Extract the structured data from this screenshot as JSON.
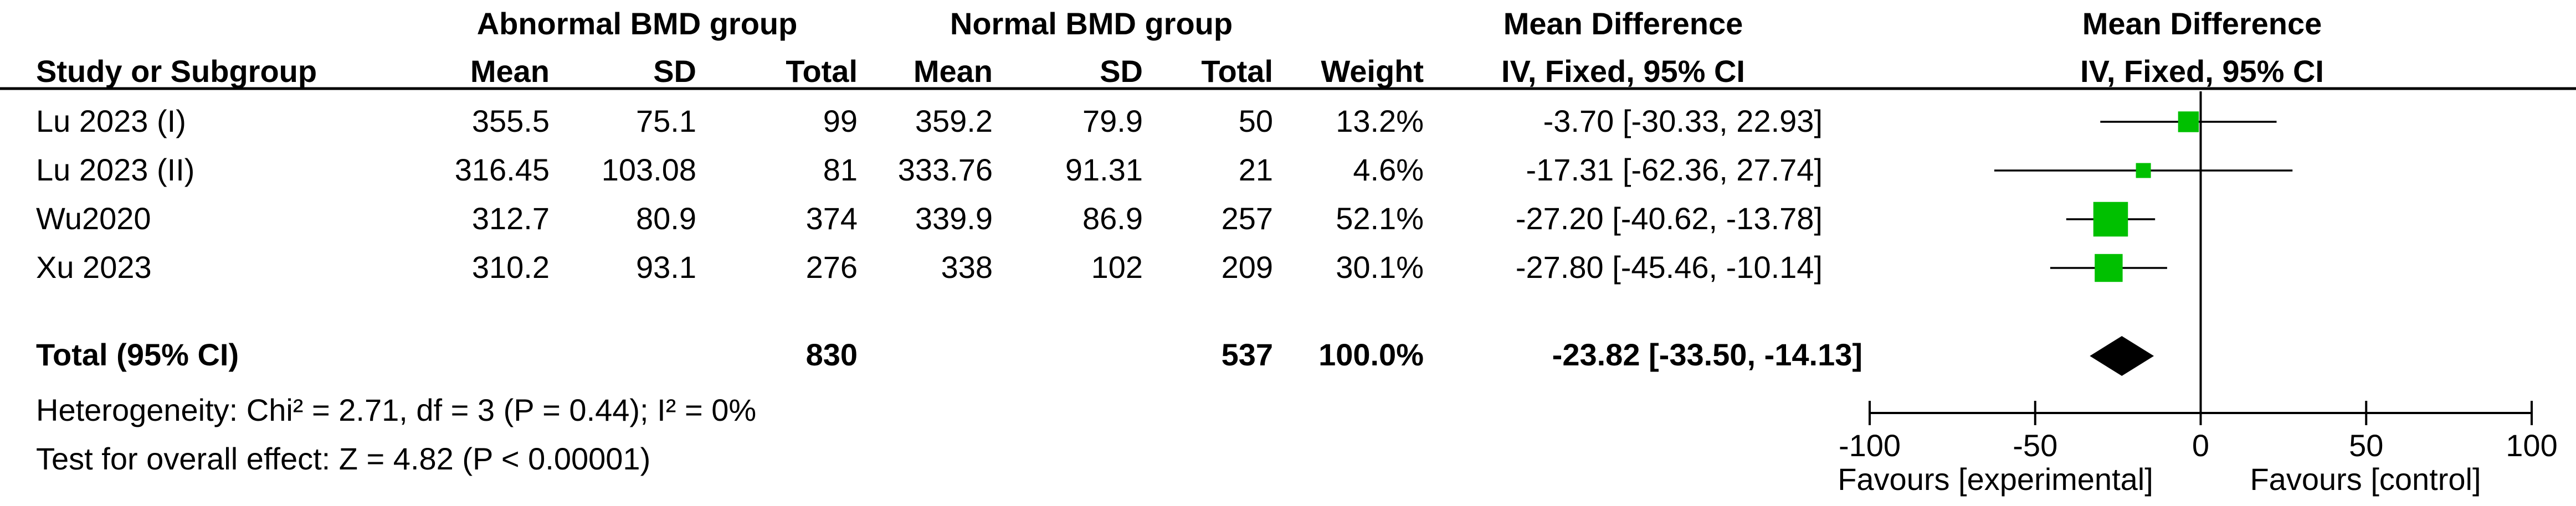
{
  "headers": {
    "group1": "Abnormal BMD group",
    "group2": "Normal BMD group",
    "effect": "Mean Difference",
    "plot_title": "Mean Difference",
    "study": "Study or Subgroup",
    "mean1": "Mean",
    "sd1": "SD",
    "total1": "Total",
    "mean2": "Mean",
    "sd2": "SD",
    "total2": "Total",
    "weight": "Weight",
    "method": "IV, Fixed, 95% CI",
    "plot_method": "IV, Fixed, 95% CI"
  },
  "studies": [
    {
      "name": "Lu 2023 (I)",
      "mean1": "355.5",
      "sd1": "75.1",
      "total1": "99",
      "mean2": "359.2",
      "sd2": "79.9",
      "total2": "50",
      "weight": "13.2%",
      "ci_text": "-3.70 [-30.33, 22.93]"
    },
    {
      "name": "Lu 2023 (II)",
      "mean1": "316.45",
      "sd1": "103.08",
      "total1": "81",
      "mean2": "333.76",
      "sd2": "91.31",
      "total2": "21",
      "weight": "4.6%",
      "ci_text": "-17.31 [-62.36, 27.74]"
    },
    {
      "name": "Wu2020",
      "mean1": "312.7",
      "sd1": "80.9",
      "total1": "374",
      "mean2": "339.9",
      "sd2": "86.9",
      "total2": "257",
      "weight": "52.1%",
      "ci_text": "-27.20 [-40.62, -13.78]"
    },
    {
      "name": "Xu 2023",
      "mean1": "310.2",
      "sd1": "93.1",
      "total1": "276",
      "mean2": "338",
      "sd2": "102",
      "total2": "209",
      "weight": "30.1%",
      "ci_text": "-27.80 [-45.46, -10.14]"
    }
  ],
  "total": {
    "label": "Total (95% CI)",
    "total1": "830",
    "total2": "537",
    "weight": "100.0%",
    "ci_text": "-23.82 [-33.50, -14.13]"
  },
  "heterogeneity": "Heterogeneity: Chi² = 2.71, df = 3 (P = 0.44); I² = 0%",
  "overall_effect": "Test for overall effect: Z = 4.82 (P < 0.00001)",
  "favours_left": "Favours [experimental]",
  "favours_right": "Favours [control]",
  "colors": {
    "marker": "#00c000",
    "diamond": "#000000",
    "line": "#000000"
  },
  "chart_data": {
    "type": "scatter",
    "subtype": "forest-plot",
    "xlim": [
      -100,
      100
    ],
    "x_ticks": [
      -100,
      -50,
      0,
      50,
      100
    ],
    "reference_line": 0,
    "points": [
      {
        "study": "Lu 2023 (I)",
        "estimate": -3.7,
        "lower": -30.33,
        "upper": 22.93,
        "weight": 13.2
      },
      {
        "study": "Lu 2023 (II)",
        "estimate": -17.31,
        "lower": -62.36,
        "upper": 27.74,
        "weight": 4.6
      },
      {
        "study": "Wu2020",
        "estimate": -27.2,
        "lower": -40.62,
        "upper": -13.78,
        "weight": 52.1
      },
      {
        "study": "Xu 2023",
        "estimate": -27.8,
        "lower": -45.46,
        "upper": -10.14,
        "weight": 30.1
      }
    ],
    "pooled": {
      "estimate": -23.82,
      "lower": -33.5,
      "upper": -14.13
    }
  }
}
